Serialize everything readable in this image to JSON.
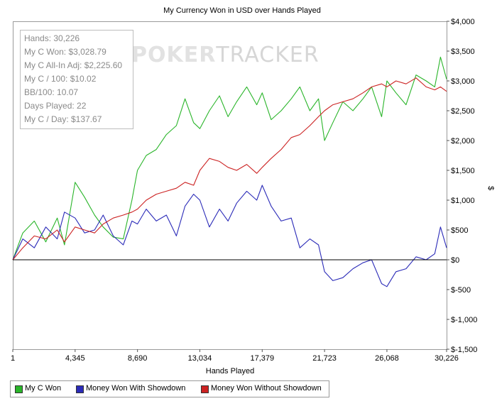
{
  "watermark": {
    "part1": "POKER",
    "part2": "TRACKER"
  },
  "stats": {
    "hands": "Hands: 30,226",
    "won": "My C Won: $3,028.79",
    "allin": "My C All-In Adj: $2,225.60",
    "per100": "My C / 100: $10.02",
    "bb100": "BB/100: 10.07",
    "days": "Days Played: 22",
    "perday": "My C / Day: $137.67"
  },
  "legend": [
    {
      "label": "My C Won",
      "color": "#2ab52a"
    },
    {
      "label": "Money Won With Showdown",
      "color": "#2b2bb8"
    },
    {
      "label": "Money Won Without Showdown",
      "color": "#cc2222"
    }
  ],
  "chart_data": {
    "type": "line",
    "title": "My Currency Won in USD over Hands Played",
    "xlabel": "Hands Played",
    "ylabel": "$",
    "xlim": [
      1,
      30226
    ],
    "ylim": [
      -1500,
      4000
    ],
    "x_ticks": [
      1,
      4345,
      8690,
      13034,
      17379,
      21723,
      26068,
      30226
    ],
    "x_tick_labels": [
      "1",
      "4,345",
      "8,690",
      "13,034",
      "17,379",
      "21,723",
      "26,068",
      "30,226"
    ],
    "y_ticks": [
      -1500,
      -1000,
      -500,
      0,
      500,
      1000,
      1500,
      2000,
      2500,
      3000,
      3500,
      4000
    ],
    "y_tick_labels": [
      "$-1,500",
      "$-1,000",
      "$-500",
      "$0",
      "$500",
      "$1,000",
      "$1,500",
      "$2,000",
      "$2,500",
      "$3,000",
      "$3,500",
      "$4,000"
    ],
    "zero_line": 0,
    "series": [
      {
        "name": "My C Won",
        "color": "#2ab52a",
        "x": [
          1,
          700,
          1500,
          2300,
          3100,
          3600,
          4345,
          5000,
          5700,
          6300,
          7000,
          7700,
          8300,
          8690,
          9300,
          10000,
          10700,
          11400,
          12000,
          12600,
          13034,
          13700,
          14400,
          15000,
          15600,
          16300,
          17000,
          17379,
          18000,
          18700,
          19400,
          20000,
          20700,
          21300,
          21723,
          22300,
          23000,
          23700,
          24400,
          25000,
          25700,
          26068,
          26700,
          27400,
          28100,
          28800,
          29400,
          29800,
          30226
        ],
        "values": [
          0,
          450,
          650,
          300,
          700,
          250,
          1300,
          1050,
          750,
          550,
          380,
          350,
          1000,
          1500,
          1750,
          1850,
          2100,
          2250,
          2700,
          2300,
          2200,
          2500,
          2750,
          2400,
          2650,
          2900,
          2600,
          2800,
          2350,
          2500,
          2700,
          2900,
          2500,
          2700,
          2000,
          2300,
          2650,
          2500,
          2700,
          2900,
          2400,
          3000,
          2800,
          2600,
          3100,
          3000,
          2900,
          3400,
          3028.79
        ]
      },
      {
        "name": "Money Won With Showdown",
        "color": "#2b2bb8",
        "x": [
          1,
          700,
          1500,
          2300,
          3100,
          3600,
          4345,
          5000,
          5700,
          6300,
          7000,
          7700,
          8300,
          8690,
          9300,
          10000,
          10700,
          11400,
          12000,
          12600,
          13034,
          13700,
          14400,
          15000,
          15600,
          16300,
          17000,
          17379,
          18000,
          18700,
          19400,
          20000,
          20700,
          21300,
          21723,
          22300,
          23000,
          23700,
          24400,
          25000,
          25700,
          26068,
          26700,
          27400,
          28100,
          28800,
          29400,
          29800,
          30226
        ],
        "values": [
          0,
          350,
          200,
          550,
          350,
          800,
          700,
          450,
          500,
          750,
          400,
          250,
          650,
          600,
          850,
          650,
          750,
          400,
          900,
          1100,
          1000,
          550,
          850,
          650,
          950,
          1150,
          1000,
          1250,
          900,
          650,
          700,
          200,
          350,
          250,
          -200,
          -350,
          -300,
          -150,
          -50,
          0,
          -400,
          -450,
          -200,
          -150,
          50,
          0,
          100,
          550,
          200
        ]
      },
      {
        "name": "Money Won Without Showdown",
        "color": "#cc2222",
        "x": [
          1,
          700,
          1500,
          2300,
          3100,
          3600,
          4345,
          5000,
          5700,
          6300,
          7000,
          7700,
          8300,
          8690,
          9300,
          10000,
          10700,
          11400,
          12000,
          12600,
          13034,
          13700,
          14400,
          15000,
          15600,
          16300,
          17000,
          17379,
          18000,
          18700,
          19400,
          20000,
          20700,
          21300,
          21723,
          22300,
          23000,
          23700,
          24400,
          25000,
          25700,
          26068,
          26700,
          27400,
          28100,
          28800,
          29400,
          29800,
          30226
        ],
        "values": [
          0,
          200,
          400,
          350,
          500,
          300,
          550,
          500,
          450,
          600,
          700,
          750,
          800,
          850,
          1000,
          1100,
          1150,
          1200,
          1300,
          1250,
          1500,
          1700,
          1650,
          1550,
          1500,
          1600,
          1450,
          1550,
          1700,
          1850,
          2050,
          2100,
          2250,
          2400,
          2500,
          2600,
          2650,
          2700,
          2800,
          2900,
          2950,
          2900,
          3000,
          2950,
          3050,
          2900,
          2850,
          2900,
          2825
        ]
      }
    ]
  }
}
